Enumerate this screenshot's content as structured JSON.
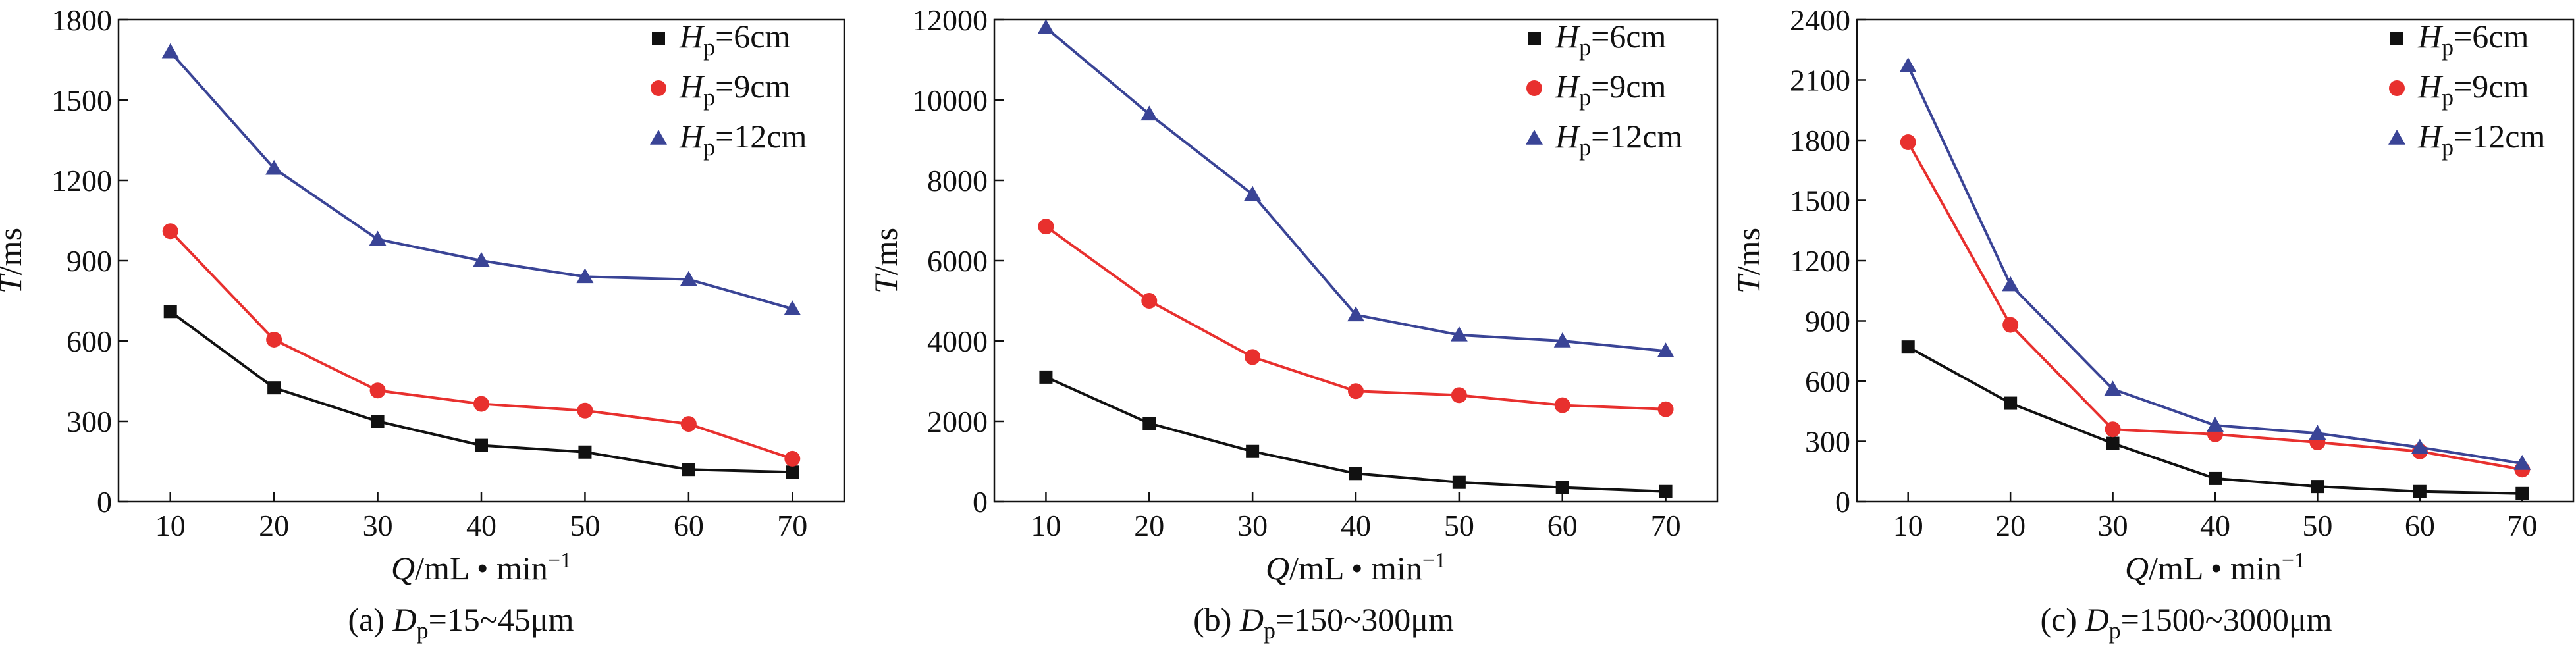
{
  "chart_data": [
    {
      "type": "line",
      "caption": {
        "prefix": "(a) ",
        "var": "D",
        "sub": "p",
        "rest": "=15~45μm"
      },
      "xlabel": {
        "var": "Q",
        "unit": "/mL • min",
        "sup": "−1"
      },
      "ylabel": {
        "var": "T",
        "unit": "/ms"
      },
      "x": [
        10,
        20,
        30,
        40,
        50,
        60,
        70
      ],
      "xlim": [
        5,
        75
      ],
      "ylim": [
        0,
        1800
      ],
      "yticks": [
        0,
        300,
        600,
        900,
        1200,
        1500,
        1800
      ],
      "series": [
        {
          "var": "H",
          "sub": "p",
          "rest": "=6cm",
          "color": "#111111",
          "marker": "square",
          "values": [
            710,
            425,
            300,
            210,
            185,
            120,
            110
          ]
        },
        {
          "var": "H",
          "sub": "p",
          "rest": "=9cm",
          "color": "#e8302e",
          "marker": "circle",
          "values": [
            1010,
            605,
            415,
            365,
            340,
            290,
            160
          ]
        },
        {
          "var": "H",
          "sub": "p",
          "rest": "=12cm",
          "color": "#3a4496",
          "marker": "triangle",
          "values": [
            1680,
            1245,
            980,
            900,
            840,
            830,
            720
          ]
        }
      ]
    },
    {
      "type": "line",
      "caption": {
        "prefix": "(b) ",
        "var": "D",
        "sub": "p",
        "rest": "=150~300μm"
      },
      "xlabel": {
        "var": "Q",
        "unit": "/mL • min",
        "sup": "−1"
      },
      "ylabel": {
        "var": "T",
        "unit": "/ms"
      },
      "x": [
        10,
        20,
        30,
        40,
        50,
        60,
        70
      ],
      "xlim": [
        5,
        75
      ],
      "ylim": [
        0,
        12000
      ],
      "yticks": [
        0,
        2000,
        4000,
        6000,
        8000,
        10000,
        12000
      ],
      "series": [
        {
          "var": "H",
          "sub": "p",
          "rest": "=6cm",
          "color": "#111111",
          "marker": "square",
          "values": [
            3100,
            1950,
            1250,
            700,
            480,
            350,
            250
          ]
        },
        {
          "var": "H",
          "sub": "p",
          "rest": "=9cm",
          "color": "#e8302e",
          "marker": "circle",
          "values": [
            6850,
            5000,
            3600,
            2750,
            2650,
            2400,
            2300
          ]
        },
        {
          "var": "H",
          "sub": "p",
          "rest": "=12cm",
          "color": "#3a4496",
          "marker": "triangle",
          "values": [
            11800,
            9650,
            7650,
            4650,
            4150,
            4000,
            3750
          ]
        }
      ]
    },
    {
      "type": "line",
      "caption": {
        "prefix": "(c) ",
        "var": "D",
        "sub": "p",
        "rest": "=1500~3000μm"
      },
      "xlabel": {
        "var": "Q",
        "unit": "/mL • min",
        "sup": "−1"
      },
      "ylabel": {
        "var": "T",
        "unit": "/ms"
      },
      "x": [
        10,
        20,
        30,
        40,
        50,
        60,
        70
      ],
      "xlim": [
        5,
        75
      ],
      "ylim": [
        0,
        2400
      ],
      "yticks": [
        0,
        300,
        600,
        900,
        1200,
        1500,
        1800,
        2100,
        2400
      ],
      "series": [
        {
          "var": "H",
          "sub": "p",
          "rest": "=6cm",
          "color": "#111111",
          "marker": "square",
          "values": [
            770,
            490,
            290,
            115,
            75,
            50,
            40
          ]
        },
        {
          "var": "H",
          "sub": "p",
          "rest": "=9cm",
          "color": "#e8302e",
          "marker": "circle",
          "values": [
            1790,
            880,
            360,
            335,
            295,
            250,
            160
          ]
        },
        {
          "var": "H",
          "sub": "p",
          "rest": "=12cm",
          "color": "#3a4496",
          "marker": "triangle",
          "values": [
            2170,
            1080,
            560,
            380,
            340,
            270,
            190
          ]
        }
      ]
    }
  ]
}
